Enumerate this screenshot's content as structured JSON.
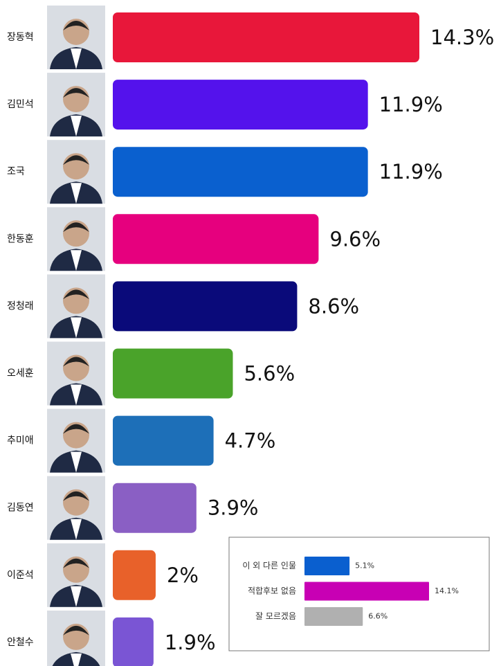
{
  "chart_data": [
    {
      "type": "bar",
      "categories": [
        "장동혁",
        "김민석",
        "조국",
        "한동훈",
        "정청래",
        "오세훈",
        "추미애",
        "김동연",
        "이준석",
        "안철수"
      ],
      "values": [
        14.3,
        11.9,
        11.9,
        9.6,
        8.6,
        5.6,
        4.7,
        3.9,
        2,
        1.9
      ],
      "value_labels": [
        "14.3%",
        "11.9%",
        "11.9%",
        "9.6%",
        "8.6%",
        "5.6%",
        "4.7%",
        "3.9%",
        "2%",
        "1.9%"
      ],
      "colors": [
        "#e8173a",
        "#5412ec",
        "#0a60cf",
        "#e6007e",
        "#0a0a7a",
        "#4aa32a",
        "#1d6fb8",
        "#8a5fc4",
        "#e8612a",
        "#7a55d4"
      ]
    },
    {
      "type": "bar",
      "categories": [
        "이 외 다른 인물",
        "적합후보 없음",
        "잘 모르겠음"
      ],
      "values": [
        5.1,
        14.1,
        6.6
      ],
      "value_labels": [
        "5.1%",
        "14.1%",
        "6.6%"
      ],
      "colors": [
        "#0a5fcf",
        "#c800b4",
        "#b0b0b0"
      ]
    }
  ]
}
